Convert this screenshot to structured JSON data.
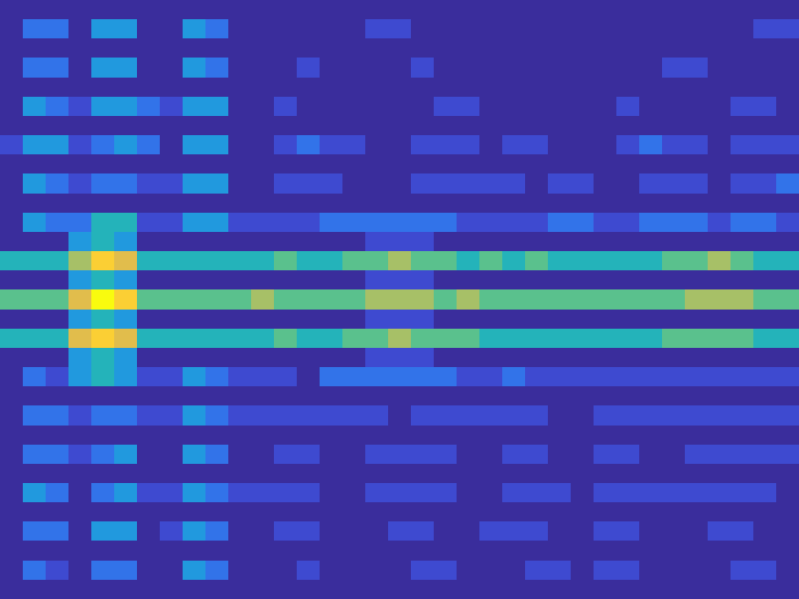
{
  "chart_data": {
    "type": "heatmap",
    "tick_labels": false,
    "zlim": [
      0,
      9
    ],
    "cells": [
      [
        0,
        0,
        0,
        0,
        0,
        0,
        0,
        0,
        0,
        0,
        0,
        0,
        0,
        0,
        0,
        0,
        0,
        0,
        0,
        0,
        0,
        0,
        0,
        0,
        0,
        0,
        0,
        0,
        0,
        0,
        0,
        0,
        0,
        0,
        0
      ],
      [
        0,
        2,
        2,
        0,
        3,
        3,
        0,
        0,
        3,
        2,
        0,
        0,
        0,
        0,
        0,
        0,
        1,
        1,
        0,
        0,
        0,
        0,
        0,
        0,
        0,
        0,
        0,
        0,
        0,
        0,
        0,
        0,
        0,
        1,
        1
      ],
      [
        0,
        0,
        0,
        0,
        0,
        0,
        0,
        0,
        0,
        0,
        0,
        0,
        0,
        0,
        0,
        0,
        0,
        0,
        0,
        0,
        0,
        0,
        0,
        0,
        0,
        0,
        0,
        0,
        0,
        0,
        0,
        0,
        0,
        0,
        0
      ],
      [
        0,
        2,
        2,
        0,
        3,
        3,
        0,
        0,
        3,
        2,
        0,
        0,
        0,
        1,
        0,
        0,
        0,
        0,
        1,
        0,
        0,
        0,
        0,
        0,
        0,
        0,
        0,
        0,
        0,
        1,
        1,
        0,
        0,
        0,
        0
      ],
      [
        0,
        0,
        0,
        0,
        0,
        0,
        0,
        0,
        0,
        0,
        0,
        0,
        0,
        0,
        0,
        0,
        0,
        0,
        0,
        0,
        0,
        0,
        0,
        0,
        0,
        0,
        0,
        0,
        0,
        0,
        0,
        0,
        0,
        0,
        0
      ],
      [
        0,
        3,
        2,
        1,
        3,
        3,
        2,
        1,
        3,
        3,
        0,
        0,
        1,
        0,
        0,
        0,
        0,
        0,
        0,
        1,
        1,
        0,
        0,
        0,
        0,
        0,
        0,
        1,
        0,
        0,
        0,
        0,
        1,
        1,
        0
      ],
      [
        0,
        0,
        0,
        0,
        0,
        0,
        0,
        0,
        0,
        0,
        0,
        0,
        0,
        0,
        0,
        0,
        0,
        0,
        0,
        0,
        0,
        0,
        0,
        0,
        0,
        0,
        0,
        0,
        0,
        0,
        0,
        0,
        0,
        0,
        0
      ],
      [
        1,
        3,
        3,
        1,
        2,
        3,
        2,
        0,
        3,
        3,
        0,
        0,
        1,
        2,
        1,
        1,
        0,
        0,
        1,
        1,
        1,
        0,
        1,
        1,
        0,
        0,
        0,
        1,
        2,
        1,
        1,
        0,
        1,
        1,
        1
      ],
      [
        0,
        0,
        0,
        0,
        0,
        0,
        0,
        0,
        0,
        0,
        0,
        0,
        0,
        0,
        0,
        0,
        0,
        0,
        0,
        0,
        0,
        0,
        0,
        0,
        0,
        0,
        0,
        0,
        0,
        0,
        0,
        0,
        0,
        0,
        0
      ],
      [
        0,
        3,
        2,
        1,
        2,
        2,
        1,
        1,
        3,
        3,
        0,
        0,
        1,
        1,
        1,
        0,
        0,
        0,
        1,
        1,
        1,
        1,
        1,
        0,
        1,
        1,
        0,
        0,
        1,
        1,
        1,
        0,
        1,
        1,
        2
      ],
      [
        0,
        0,
        0,
        0,
        0,
        0,
        0,
        0,
        0,
        0,
        0,
        0,
        0,
        0,
        0,
        0,
        0,
        0,
        0,
        0,
        0,
        0,
        0,
        0,
        0,
        0,
        0,
        0,
        0,
        0,
        0,
        0,
        0,
        0,
        0
      ],
      [
        0,
        3,
        2,
        2,
        4,
        4,
        1,
        1,
        3,
        3,
        1,
        1,
        1,
        1,
        2,
        2,
        2,
        2,
        2,
        2,
        1,
        1,
        1,
        1,
        2,
        2,
        1,
        1,
        2,
        2,
        2,
        1,
        2,
        2,
        1
      ],
      [
        0,
        0,
        0,
        3,
        4,
        3,
        0,
        0,
        0,
        0,
        0,
        0,
        0,
        0,
        0,
        0,
        1,
        1,
        1,
        0,
        0,
        0,
        0,
        0,
        0,
        0,
        0,
        0,
        0,
        0,
        0,
        0,
        0,
        0,
        0
      ],
      [
        4,
        4,
        4,
        6,
        8,
        7,
        4,
        4,
        4,
        4,
        4,
        4,
        5,
        4,
        4,
        5,
        5,
        6,
        5,
        5,
        4,
        5,
        4,
        5,
        4,
        4,
        4,
        4,
        4,
        5,
        5,
        6,
        5,
        4,
        4
      ],
      [
        0,
        0,
        0,
        3,
        4,
        3,
        0,
        0,
        0,
        0,
        0,
        0,
        0,
        0,
        0,
        0,
        1,
        1,
        1,
        0,
        0,
        0,
        0,
        0,
        0,
        0,
        0,
        0,
        0,
        0,
        0,
        0,
        0,
        0,
        0
      ],
      [
        5,
        5,
        5,
        7,
        9,
        8,
        5,
        5,
        5,
        5,
        5,
        6,
        5,
        5,
        5,
        5,
        6,
        6,
        6,
        5,
        6,
        5,
        5,
        5,
        5,
        5,
        5,
        5,
        5,
        5,
        6,
        6,
        6,
        5,
        5
      ],
      [
        0,
        0,
        0,
        3,
        4,
        3,
        0,
        0,
        0,
        0,
        0,
        0,
        0,
        0,
        0,
        0,
        1,
        1,
        1,
        0,
        0,
        0,
        0,
        0,
        0,
        0,
        0,
        0,
        0,
        0,
        0,
        0,
        0,
        0,
        0
      ],
      [
        4,
        4,
        4,
        7,
        8,
        7,
        4,
        4,
        4,
        4,
        4,
        4,
        5,
        4,
        4,
        5,
        5,
        6,
        5,
        5,
        5,
        4,
        4,
        4,
        4,
        4,
        4,
        4,
        4,
        5,
        5,
        5,
        5,
        4,
        4
      ],
      [
        0,
        0,
        0,
        3,
        4,
        3,
        0,
        0,
        0,
        0,
        0,
        0,
        0,
        0,
        0,
        0,
        1,
        1,
        1,
        0,
        0,
        0,
        0,
        0,
        0,
        0,
        0,
        0,
        0,
        0,
        0,
        0,
        0,
        0,
        0
      ],
      [
        0,
        2,
        1,
        3,
        4,
        3,
        1,
        1,
        3,
        2,
        1,
        1,
        1,
        0,
        2,
        2,
        2,
        2,
        2,
        2,
        1,
        1,
        2,
        1,
        1,
        1,
        1,
        1,
        1,
        1,
        1,
        1,
        1,
        1,
        1
      ],
      [
        0,
        0,
        0,
        0,
        0,
        0,
        0,
        0,
        0,
        0,
        0,
        0,
        0,
        0,
        0,
        0,
        0,
        0,
        0,
        0,
        0,
        0,
        0,
        0,
        0,
        0,
        0,
        0,
        0,
        0,
        0,
        0,
        0,
        0,
        0
      ],
      [
        0,
        2,
        2,
        1,
        2,
        2,
        1,
        1,
        3,
        2,
        1,
        1,
        1,
        1,
        1,
        1,
        1,
        0,
        1,
        1,
        1,
        1,
        1,
        1,
        0,
        0,
        1,
        1,
        1,
        1,
        1,
        1,
        1,
        1,
        1
      ],
      [
        0,
        0,
        0,
        0,
        0,
        0,
        0,
        0,
        0,
        0,
        0,
        0,
        0,
        0,
        0,
        0,
        0,
        0,
        0,
        0,
        0,
        0,
        0,
        0,
        0,
        0,
        0,
        0,
        0,
        0,
        0,
        0,
        0,
        0,
        0
      ],
      [
        0,
        2,
        2,
        1,
        2,
        3,
        0,
        0,
        3,
        2,
        0,
        0,
        1,
        1,
        0,
        0,
        1,
        1,
        1,
        1,
        0,
        0,
        1,
        1,
        0,
        0,
        1,
        1,
        0,
        0,
        1,
        1,
        1,
        1,
        1
      ],
      [
        0,
        0,
        0,
        0,
        0,
        0,
        0,
        0,
        0,
        0,
        0,
        0,
        0,
        0,
        0,
        0,
        0,
        0,
        0,
        0,
        0,
        0,
        0,
        0,
        0,
        0,
        0,
        0,
        0,
        0,
        0,
        0,
        0,
        0,
        0
      ],
      [
        0,
        3,
        2,
        0,
        2,
        3,
        1,
        1,
        3,
        2,
        1,
        1,
        1,
        1,
        0,
        0,
        1,
        1,
        1,
        1,
        0,
        0,
        1,
        1,
        1,
        0,
        1,
        1,
        1,
        1,
        1,
        1,
        1,
        1,
        0
      ],
      [
        0,
        0,
        0,
        0,
        0,
        0,
        0,
        0,
        0,
        0,
        0,
        0,
        0,
        0,
        0,
        0,
        0,
        0,
        0,
        0,
        0,
        0,
        0,
        0,
        0,
        0,
        0,
        0,
        0,
        0,
        0,
        0,
        0,
        0,
        0
      ],
      [
        0,
        2,
        2,
        0,
        3,
        3,
        0,
        1,
        3,
        2,
        0,
        0,
        1,
        1,
        0,
        0,
        0,
        1,
        1,
        0,
        0,
        1,
        1,
        1,
        0,
        0,
        1,
        1,
        0,
        0,
        0,
        1,
        1,
        0,
        0
      ],
      [
        0,
        0,
        0,
        0,
        0,
        0,
        0,
        0,
        0,
        0,
        0,
        0,
        0,
        0,
        0,
        0,
        0,
        0,
        0,
        0,
        0,
        0,
        0,
        0,
        0,
        0,
        0,
        0,
        0,
        0,
        0,
        0,
        0,
        0,
        0
      ],
      [
        0,
        2,
        1,
        0,
        2,
        2,
        0,
        0,
        3,
        2,
        0,
        0,
        0,
        1,
        0,
        0,
        0,
        0,
        1,
        1,
        0,
        0,
        0,
        1,
        1,
        0,
        1,
        1,
        0,
        0,
        0,
        0,
        1,
        1,
        0
      ],
      [
        0,
        0,
        0,
        0,
        0,
        0,
        0,
        0,
        0,
        0,
        0,
        0,
        0,
        0,
        0,
        0,
        0,
        0,
        0,
        0,
        0,
        0,
        0,
        0,
        0,
        0,
        0,
        0,
        0,
        0,
        0,
        0,
        0,
        0,
        0
      ]
    ]
  }
}
